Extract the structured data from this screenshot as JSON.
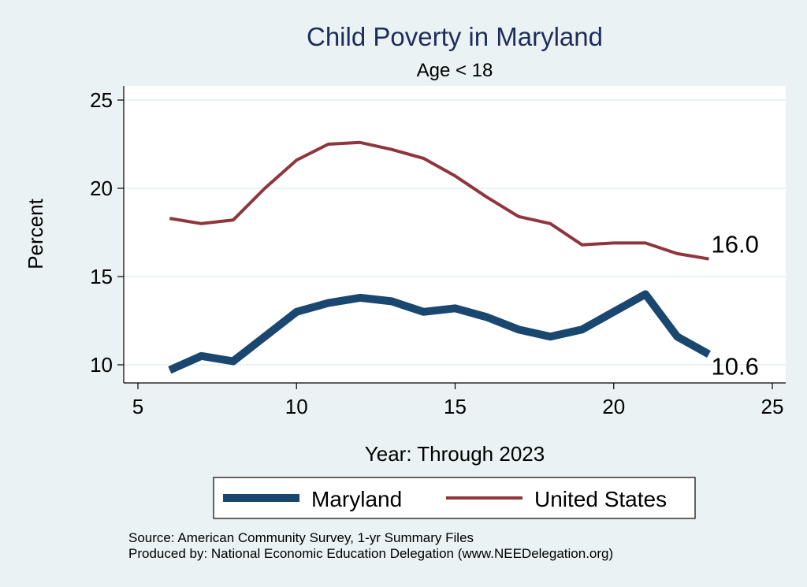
{
  "chart_data": {
    "type": "line",
    "title": "Child Poverty in Maryland",
    "subtitle": "Age < 18",
    "xlabel": "Year: Through 2023",
    "ylabel": "Percent",
    "xlim": [
      5,
      25
    ],
    "ylim": [
      9.3,
      25.6
    ],
    "xticks": [
      5,
      10,
      15,
      20,
      25
    ],
    "yticks": [
      10,
      15,
      20,
      25
    ],
    "grid": true,
    "legend_position": "bottom",
    "series": [
      {
        "name": "Maryland",
        "color": "#1a476f",
        "x": [
          6,
          7,
          8,
          9,
          10,
          11,
          12,
          13,
          14,
          15,
          16,
          17,
          18,
          19,
          20,
          21,
          22,
          23
        ],
        "values": [
          9.7,
          10.5,
          10.2,
          11.6,
          13.0,
          13.5,
          13.8,
          13.6,
          13.0,
          13.2,
          12.7,
          12.0,
          11.6,
          12.0,
          13.0,
          14.0,
          11.6,
          10.6
        ],
        "end_label": "10.6"
      },
      {
        "name": "United States",
        "color": "#90353b",
        "x": [
          6,
          7,
          8,
          9,
          10,
          11,
          12,
          13,
          14,
          15,
          16,
          17,
          18,
          19,
          20,
          21,
          22,
          23
        ],
        "values": [
          18.3,
          18.0,
          18.2,
          20.0,
          21.6,
          22.5,
          22.6,
          22.2,
          21.7,
          20.7,
          19.5,
          18.4,
          18.0,
          16.8,
          16.9,
          16.9,
          16.3,
          16.0
        ],
        "end_label": "16.0"
      }
    ]
  },
  "notes": {
    "source": "Source: American Community Survey, 1-yr Summary Files",
    "produced_by": "Produced by: National Economic Education Delegation (www.NEEDelegation.org)"
  }
}
